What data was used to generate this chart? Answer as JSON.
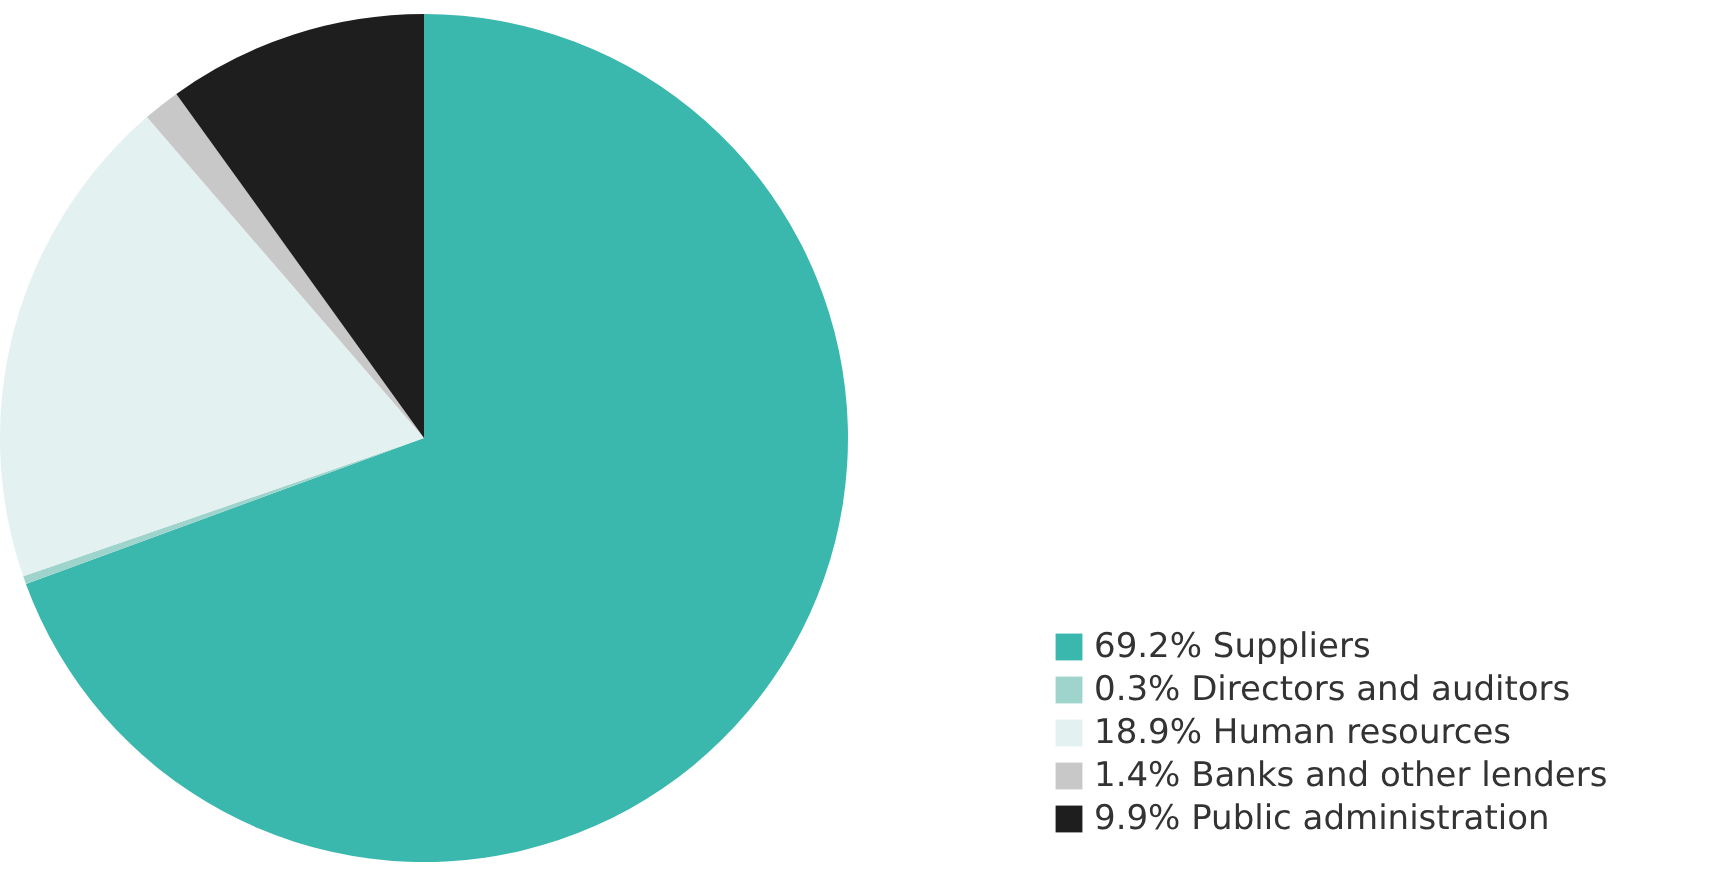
{
  "chart_data": {
    "type": "pie",
    "categories": [
      "69.2% Suppliers",
      "0.3% Directors and auditors",
      "18.9% Human resources",
      "1.4% Banks and other lenders",
      "9.9% Public administration"
    ],
    "values": [
      69.2,
      0.3,
      18.9,
      1.4,
      9.9
    ],
    "colors": [
      "#3bb8ad",
      "#9fd4cc",
      "#e3f1f1",
      "#c8c8c8",
      "#1e1e1e"
    ],
    "legend": "bottom right"
  }
}
